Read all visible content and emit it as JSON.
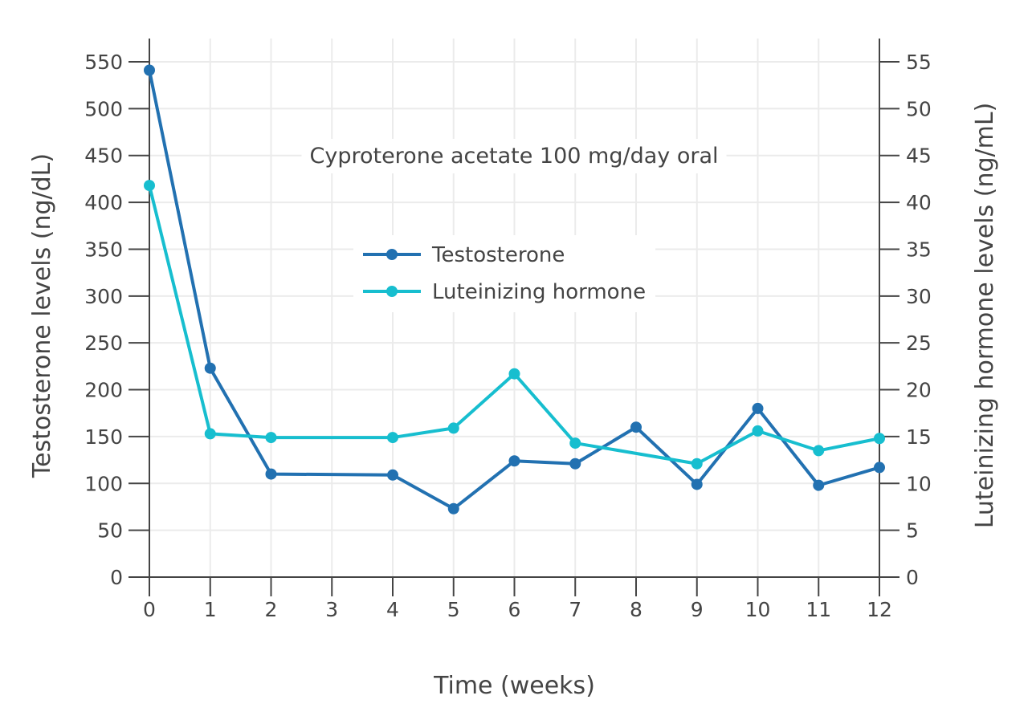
{
  "chart_data": {
    "type": "line",
    "x": [
      0,
      1,
      2,
      4,
      5,
      6,
      7,
      8,
      9,
      10,
      11,
      12
    ],
    "x_ticks": [
      "0",
      "1",
      "2",
      "3",
      "4",
      "5",
      "6",
      "7",
      "8",
      "9",
      "10",
      "11",
      "12"
    ],
    "xlabel": "Time (weeks)",
    "xlim": [
      0,
      12
    ],
    "ylabel": "Testosterone levels (ng/dL)",
    "ylim": [
      0,
      550
    ],
    "y_ticks": [
      "0",
      "50",
      "100",
      "150",
      "200",
      "250",
      "300",
      "350",
      "400",
      "450",
      "500",
      "550"
    ],
    "y2label": "Luteinizing hormone levels (ng/mL)",
    "y2lim": [
      0,
      55
    ],
    "y2_ticks": [
      "0",
      "5",
      "10",
      "15",
      "20",
      "25",
      "30",
      "35",
      "40",
      "45",
      "50",
      "55"
    ],
    "annotation": "Cyproterone acetate 100 mg/day oral",
    "grid": true,
    "legend_position": "center",
    "series": [
      {
        "name": "Testosterone",
        "axis": "left",
        "color": "#2271b1",
        "values": [
          541,
          223,
          110,
          109,
          73,
          124,
          121,
          160,
          99,
          180,
          98,
          117
        ]
      },
      {
        "name": "Luteinizing hormone",
        "axis": "right",
        "color": "#17becf",
        "values": [
          41.8,
          15.3,
          14.9,
          14.9,
          15.9,
          21.7,
          14.3,
          null,
          12.1,
          15.6,
          13.5,
          14.8
        ]
      }
    ]
  }
}
